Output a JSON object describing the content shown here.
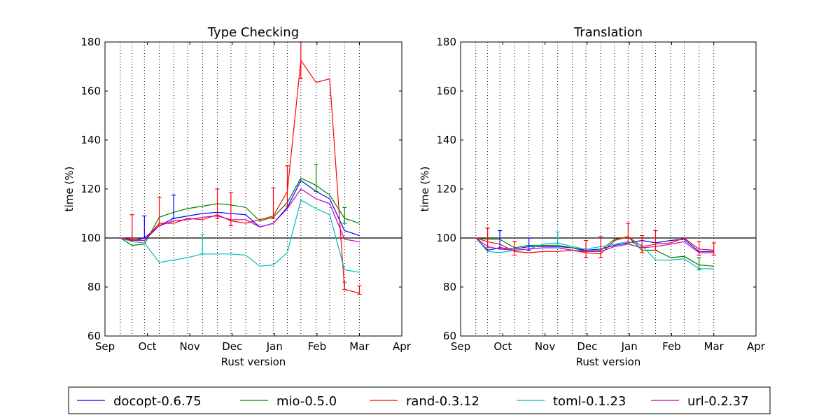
{
  "chart_data": [
    {
      "type": "line",
      "title": "Type Checking",
      "xlabel": "Rust version",
      "ylabel": "time (%)",
      "ylim": [
        60,
        180
      ],
      "yticks": [
        "60",
        "80",
        "100",
        "120",
        "140",
        "160",
        "180"
      ],
      "xlim": [
        0,
        7
      ],
      "xticks": [
        {
          "label": "Sep",
          "value": 0
        },
        {
          "label": "Oct",
          "value": 1
        },
        {
          "label": "Nov",
          "value": 2
        },
        {
          "label": "Dec",
          "value": 3
        },
        {
          "label": "Jan",
          "value": 4
        },
        {
          "label": "Feb",
          "value": 5
        },
        {
          "label": "Mar",
          "value": 6
        },
        {
          "label": "Apr",
          "value": 7
        }
      ],
      "x": [
        0.36,
        0.64,
        0.93,
        1.28,
        1.62,
        1.95,
        2.3,
        2.65,
        2.97,
        3.32,
        3.65,
        3.97,
        4.3,
        4.62,
        4.98,
        5.3,
        5.65,
        6.0
      ],
      "baseline": 100,
      "series": [
        {
          "name": "docopt-0.6.75",
          "color": "#0000ff",
          "values": [
            100,
            99,
            100,
            105,
            108,
            109,
            110,
            110.5,
            110,
            109.5,
            104.5,
            106,
            112.5,
            123.5,
            119,
            116,
            103,
            101
          ]
        },
        {
          "name": "mio-0.5.0",
          "color": "#008000",
          "values": [
            100,
            97,
            97.5,
            108.5,
            110.5,
            112,
            113,
            114,
            113.5,
            112.5,
            107,
            108.5,
            114.5,
            124.5,
            121.5,
            117.5,
            108,
            106
          ]
        },
        {
          "name": "rand-0.3.12",
          "color": "#ff0000",
          "values": [
            100,
            99.5,
            99,
            106,
            106,
            108,
            107.5,
            109.5,
            107,
            106,
            107.5,
            109,
            119,
            172.5,
            163.5,
            165,
            79,
            77.5
          ]
        },
        {
          "name": "toml-0.1.23",
          "color": "#00bfbf",
          "values": [
            100,
            98.5,
            98,
            90,
            91,
            92,
            93.5,
            93.5,
            93.5,
            93,
            88.5,
            89,
            94,
            115.5,
            112,
            109.5,
            87,
            86
          ]
        },
        {
          "name": "url-0.2.37",
          "color": "#bf00bf",
          "values": [
            100,
            99,
            99,
            105,
            107,
            107.5,
            108.5,
            109,
            107.5,
            107.5,
            104.5,
            106,
            112,
            120,
            116,
            114,
            99.5,
            98.5
          ]
        }
      ],
      "error_bars": [
        {
          "series": 0,
          "index": 2,
          "low": 100,
          "high": 109
        },
        {
          "series": 0,
          "index": 4,
          "low": 108,
          "high": 117.5
        },
        {
          "series": 2,
          "index": 1,
          "low": 99,
          "high": 109.5
        },
        {
          "series": 2,
          "index": 3,
          "low": 105,
          "high": 116.5
        },
        {
          "series": 2,
          "index": 7,
          "low": 108,
          "high": 120
        },
        {
          "series": 2,
          "index": 8,
          "low": 105,
          "high": 118.5
        },
        {
          "series": 2,
          "index": 11,
          "low": 108,
          "high": 120.5
        },
        {
          "series": 2,
          "index": 12,
          "low": 113,
          "high": 129.5
        },
        {
          "series": 2,
          "index": 13,
          "low": 165,
          "high": 180
        },
        {
          "series": 1,
          "index": 14,
          "low": 119,
          "high": 130
        },
        {
          "series": 1,
          "index": 16,
          "low": 106,
          "high": 112.5
        },
        {
          "series": 2,
          "index": 16,
          "low": 79,
          "high": 82
        },
        {
          "series": 2,
          "index": 17,
          "low": 77,
          "high": 80.5
        },
        {
          "series": 3,
          "index": 6,
          "low": 93.5,
          "high": 101.5
        }
      ]
    },
    {
      "type": "line",
      "title": "Translation",
      "xlabel": "Rust version",
      "ylabel": "time (%)",
      "ylim": [
        60,
        180
      ],
      "yticks": [
        "60",
        "80",
        "100",
        "120",
        "140",
        "160",
        "180"
      ],
      "xlim": [
        0,
        7
      ],
      "xticks": [
        {
          "label": "Sep",
          "value": 0
        },
        {
          "label": "Oct",
          "value": 1
        },
        {
          "label": "Nov",
          "value": 2
        },
        {
          "label": "Dec",
          "value": 3
        },
        {
          "label": "Jan",
          "value": 4
        },
        {
          "label": "Feb",
          "value": 5
        },
        {
          "label": "Mar",
          "value": 6
        },
        {
          "label": "Apr",
          "value": 7
        }
      ],
      "x": [
        0.36,
        0.64,
        0.93,
        1.28,
        1.62,
        1.95,
        2.3,
        2.65,
        2.97,
        3.32,
        3.65,
        3.97,
        4.3,
        4.62,
        4.98,
        5.3,
        5.65,
        6.0
      ],
      "baseline": 100,
      "series": [
        {
          "name": "docopt-0.6.75",
          "color": "#0000ff",
          "values": [
            100,
            95,
            96,
            95.5,
            96.5,
            96.5,
            96.5,
            96,
            95,
            95.5,
            97,
            98,
            99,
            98,
            99,
            99.5,
            94.5,
            94.5
          ]
        },
        {
          "name": "mio-0.5.0",
          "color": "#008000",
          "values": [
            100,
            99.5,
            99.5,
            96,
            97,
            97,
            97,
            96,
            94.5,
            95,
            99.5,
            100.5,
            95,
            95,
            92,
            92.5,
            89,
            88.5
          ]
        },
        {
          "name": "rand-0.3.12",
          "color": "#ff0000",
          "values": [
            100,
            98.5,
            97.5,
            94.5,
            94,
            94.5,
            94.5,
            95,
            94,
            93.5,
            99,
            100.5,
            96.5,
            97.5,
            98,
            100,
            95.5,
            95
          ]
        },
        {
          "name": "toml-0.1.23",
          "color": "#00bfbf",
          "values": [
            100,
            94.5,
            94,
            95,
            95.5,
            97.5,
            98,
            96.5,
            95.5,
            96.5,
            97.5,
            98.5,
            97,
            91,
            91,
            91.5,
            87.5,
            87.5
          ]
        },
        {
          "name": "url-0.2.37",
          "color": "#bf00bf",
          "values": [
            100,
            96.5,
            95.5,
            95,
            95.5,
            96,
            96,
            95,
            94.5,
            94.5,
            96.5,
            97.5,
            96,
            96.5,
            97.5,
            98.5,
            94,
            94
          ]
        }
      ],
      "error_bars": [
        {
          "series": 2,
          "index": 1,
          "low": 96,
          "high": 104
        },
        {
          "series": 0,
          "index": 2,
          "low": 96,
          "high": 103
        },
        {
          "series": 2,
          "index": 3,
          "low": 93,
          "high": 98.5
        },
        {
          "series": 0,
          "index": 4,
          "low": 95,
          "high": 100
        },
        {
          "series": 3,
          "index": 6,
          "low": 96,
          "high": 102.5
        },
        {
          "series": 2,
          "index": 8,
          "low": 92,
          "high": 99
        },
        {
          "series": 2,
          "index": 9,
          "low": 92,
          "high": 100.5
        },
        {
          "series": 2,
          "index": 11,
          "low": 98,
          "high": 106
        },
        {
          "series": 2,
          "index": 12,
          "low": 94,
          "high": 101
        },
        {
          "series": 2,
          "index": 13,
          "low": 95,
          "high": 103
        },
        {
          "series": 1,
          "index": 16,
          "low": 87,
          "high": 92
        },
        {
          "series": 2,
          "index": 16,
          "low": 93,
          "high": 98.5
        },
        {
          "series": 2,
          "index": 17,
          "low": 93,
          "high": 98
        }
      ]
    }
  ],
  "legend": [
    {
      "label": "docopt-0.6.75",
      "color": "#0000ff"
    },
    {
      "label": "mio-0.5.0",
      "color": "#008000"
    },
    {
      "label": "rand-0.3.12",
      "color": "#ff0000"
    },
    {
      "label": "toml-0.1.23",
      "color": "#00bfbf"
    },
    {
      "label": "url-0.2.37",
      "color": "#bf00bf"
    }
  ]
}
